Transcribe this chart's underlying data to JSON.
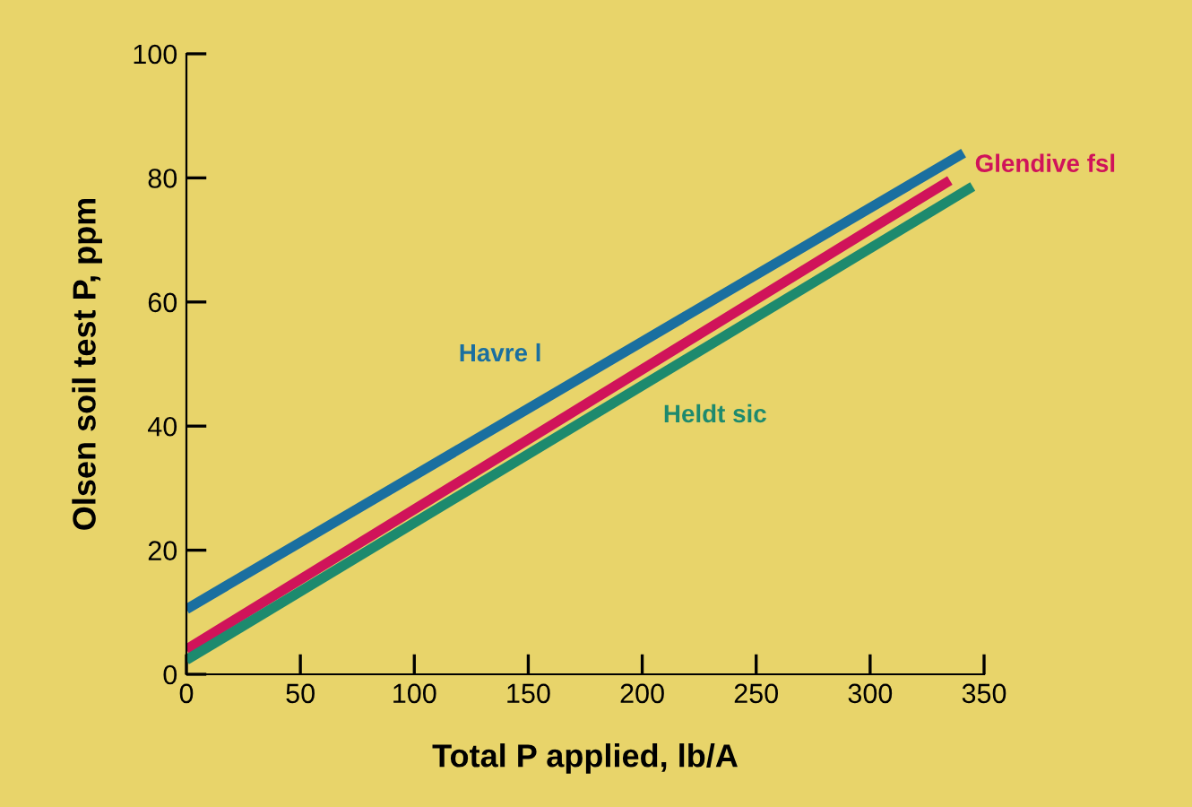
{
  "chart_data": {
    "type": "line",
    "xlabel": "Total P applied, lb/A",
    "ylabel": "Olsen soil test P, ppm",
    "xlim": [
      0,
      350
    ],
    "ylim": [
      0,
      100
    ],
    "xticks": [
      0,
      50,
      100,
      150,
      200,
      250,
      300,
      350
    ],
    "yticks": [
      0,
      20,
      40,
      60,
      80,
      100
    ],
    "grid": false,
    "legend": false,
    "marker": "none",
    "line_style": "solid",
    "series": [
      {
        "name": "Havre l",
        "color": "#1a6fa0",
        "x": [
          0,
          341
        ],
        "values": [
          10.5,
          84
        ]
      },
      {
        "name": "Glendive fsl",
        "color": "#d0135a",
        "x": [
          0,
          335
        ],
        "values": [
          4,
          79.6
        ]
      },
      {
        "name": "Heldt sic",
        "color": "#1d8a6e",
        "x": [
          0,
          345
        ],
        "values": [
          2.3,
          78.6
        ]
      }
    ]
  }
}
